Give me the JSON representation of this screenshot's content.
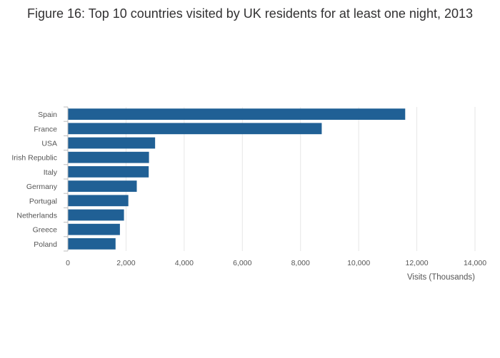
{
  "chart_data": {
    "type": "bar",
    "orientation": "horizontal",
    "title": "Figure 16: Top 10 countries visited by UK residents for at least one night, 2013",
    "categories": [
      "Spain",
      "France",
      "USA",
      "Irish Republic",
      "Italy",
      "Germany",
      "Portugal",
      "Netherlands",
      "Greece",
      "Poland"
    ],
    "values": [
      11600,
      8730,
      3000,
      2790,
      2780,
      2370,
      2080,
      1930,
      1790,
      1640
    ],
    "xlabel": "Visits (Thousands)",
    "ylabel": "",
    "xlim": [
      0,
      14000
    ],
    "xticks": [
      0,
      2000,
      4000,
      6000,
      8000,
      10000,
      12000,
      14000
    ],
    "xtick_labels": [
      "0",
      "2,000",
      "4,000",
      "6,000",
      "8,000",
      "10,000",
      "12,000",
      "14,000"
    ],
    "grid": true,
    "bar_color": "#206095"
  }
}
